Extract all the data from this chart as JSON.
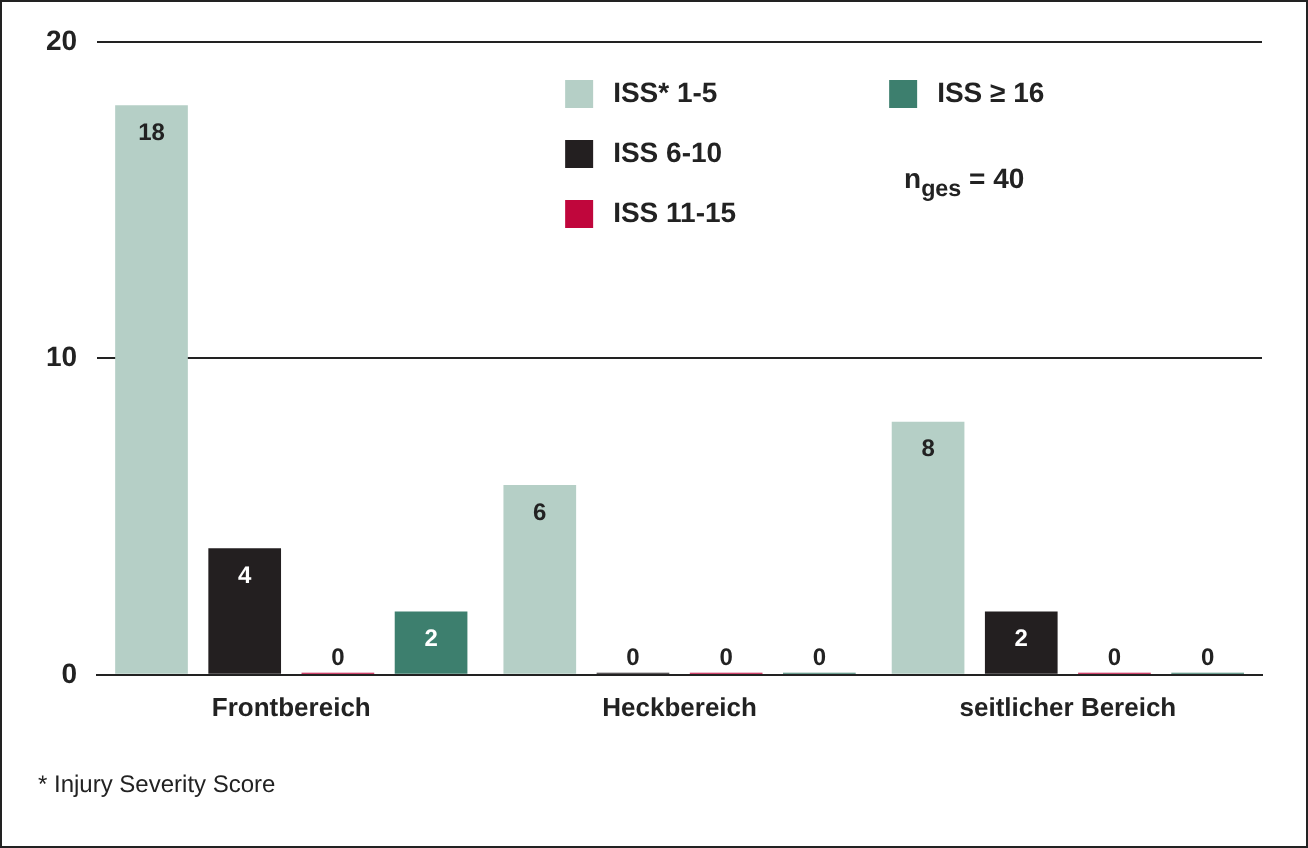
{
  "chart_data": {
    "type": "bar",
    "categories": [
      "Frontbereich",
      "Heckbereich",
      "seitlicher Bereich"
    ],
    "series": [
      {
        "name": "ISS* 1-5",
        "color": "#b5cfc6",
        "values": [
          18,
          6,
          8
        ]
      },
      {
        "name": "ISS 6-10",
        "color": "#231f20",
        "values": [
          4,
          0,
          2
        ]
      },
      {
        "name": "ISS 11-15",
        "color": "#c0063c",
        "values": [
          0,
          0,
          0
        ]
      },
      {
        "name": "ISS ≥ 16",
        "color": "#3d7f6e",
        "values": [
          2,
          0,
          0
        ]
      }
    ],
    "ylim": [
      0,
      20
    ],
    "yticks": [
      0,
      10,
      20
    ],
    "grid": "y",
    "legend": "top",
    "data_labels": true,
    "annotations": [
      "n$_{ges}$ = 40",
      "* Injury Severity Score"
    ]
  }
}
